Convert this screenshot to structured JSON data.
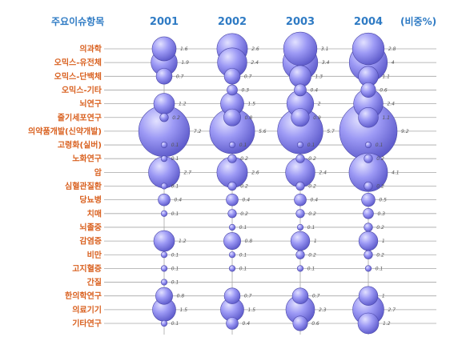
{
  "chart_data": {
    "type": "scatter",
    "header_left": "주요이슈항목",
    "header_right": "(비중%)",
    "years": [
      "2001",
      "2002",
      "2003",
      "2004"
    ],
    "categories": [
      "의과학",
      "오믹스-유전체",
      "오믹스-단백체",
      "오믹스-기타",
      "뇌연구",
      "줄기세포연구",
      "의약품개발(신약개발)",
      "고령화(실버)",
      "노화연구",
      "암",
      "심혈관질환",
      "당뇨병",
      "치매",
      "뇌졸중",
      "감염증",
      "비만",
      "고지혈증",
      "간질",
      "한의학연구",
      "의료기기",
      "기타연구"
    ],
    "series": [
      {
        "year": "2001",
        "values": [
          1.6,
          1.9,
          0.7,
          null,
          1.2,
          0.2,
          7.2,
          0.1,
          0.1,
          2.7,
          0.1,
          0.4,
          0.1,
          null,
          1.2,
          0.1,
          0.1,
          0.1,
          0.8,
          1.5,
          0.1
        ]
      },
      {
        "year": "2002",
        "values": [
          2.6,
          2.4,
          0.7,
          0.3,
          1.5,
          0.8,
          5.6,
          0.1,
          0.2,
          2.6,
          0.2,
          0.4,
          0.2,
          0.1,
          0.8,
          0.1,
          0.1,
          null,
          0.7,
          1.5,
          0.4
        ]
      },
      {
        "year": "2003",
        "values": [
          3.1,
          3.4,
          1.3,
          0.4,
          2,
          0.9,
          5.7,
          0.1,
          0.2,
          2.4,
          0.2,
          0.4,
          0.2,
          0.1,
          1,
          0.2,
          0.1,
          null,
          0.7,
          2.3,
          0.6
        ]
      },
      {
        "year": "2004",
        "values": [
          2.8,
          4,
          1.1,
          0.6,
          2.4,
          1.1,
          9.2,
          0.1,
          0.2,
          4.1,
          0.2,
          0.5,
          0.3,
          0.2,
          1,
          0.2,
          0.1,
          null,
          1,
          2.7,
          1.2
        ]
      }
    ],
    "bubble_color": "#8f8cf2",
    "bubble_edge": "#4b48a8",
    "category_color": "#d9601f",
    "year_color": "#2f7bc4",
    "grid": true
  }
}
